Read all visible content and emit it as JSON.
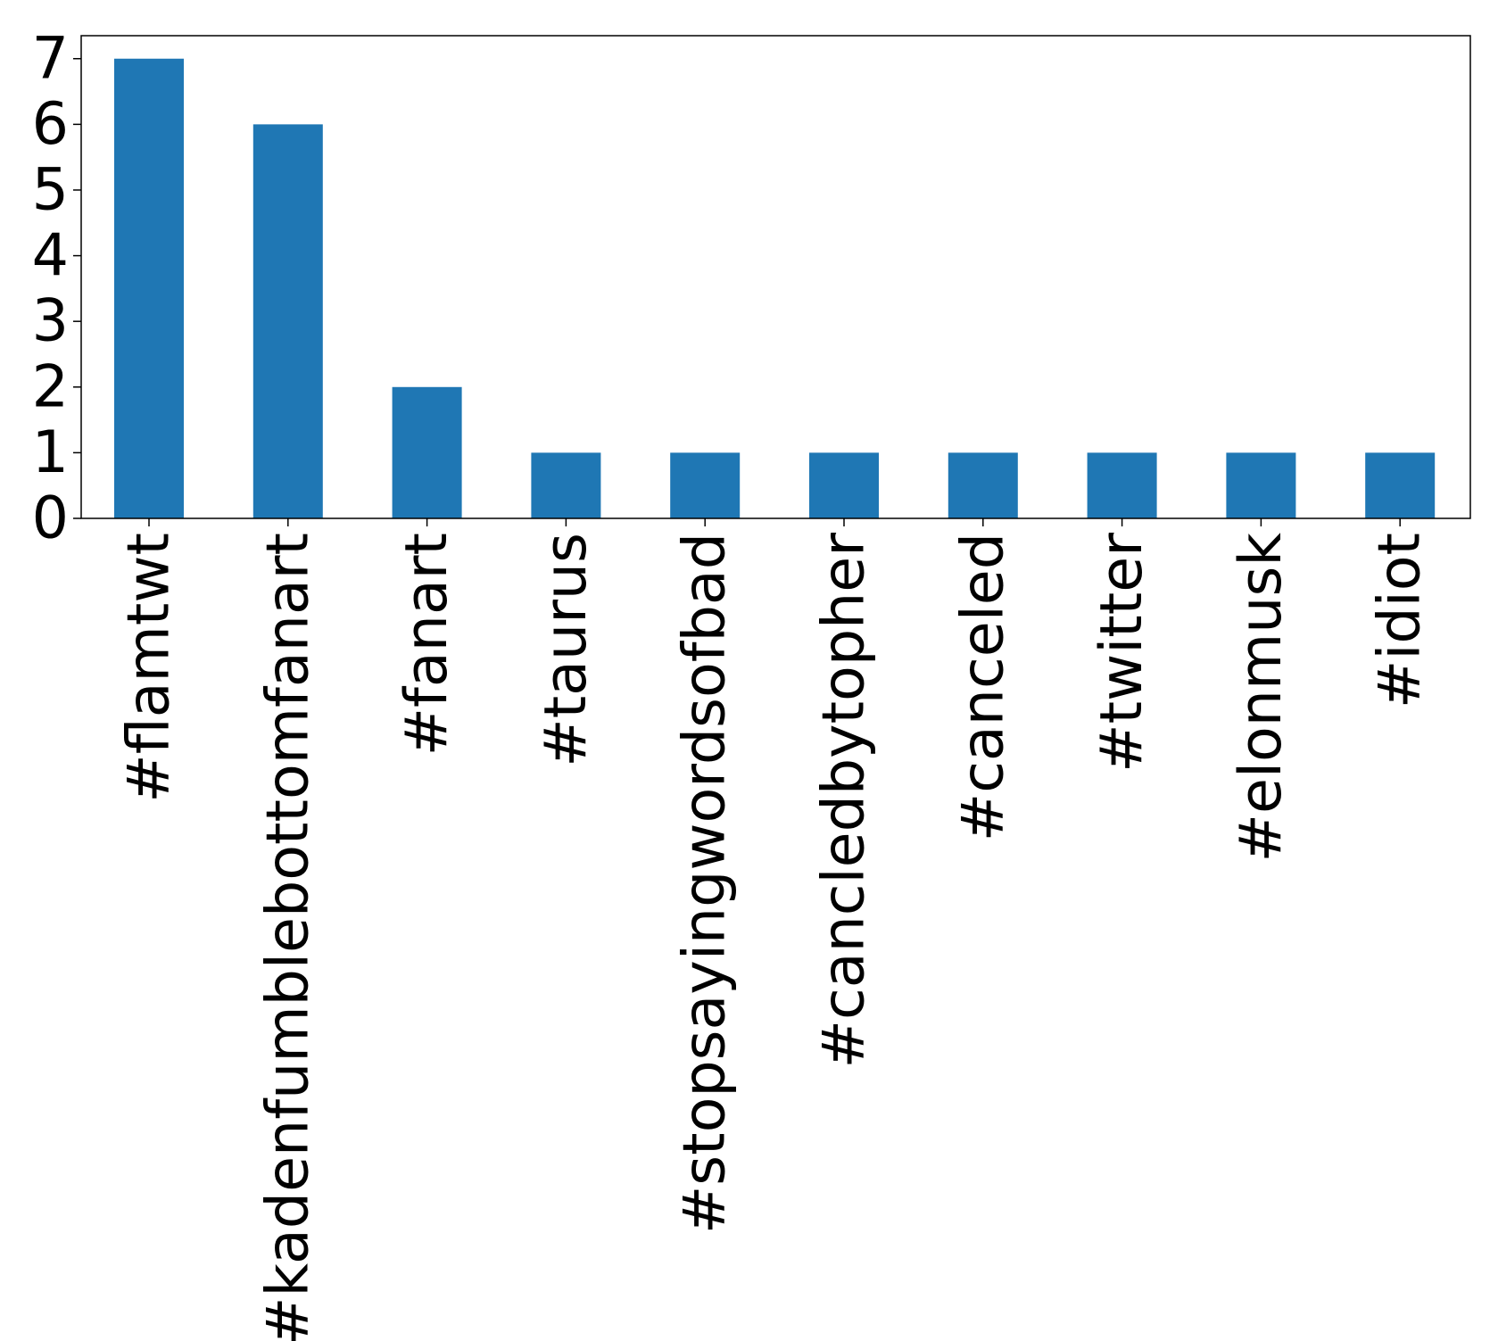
{
  "chart_data": {
    "type": "bar",
    "categories": [
      "#flamtwt",
      "#kadenfumblebottomfanart",
      "#fanart",
      "#taurus",
      "#stopsayingwordsofbad",
      "#cancledbytopher",
      "#canceled",
      "#twitter",
      "#elonmusk",
      "#idiot"
    ],
    "values": [
      7,
      6,
      2,
      1,
      1,
      1,
      1,
      1,
      1,
      1
    ],
    "y_ticks": [
      "0",
      "1",
      "2",
      "3",
      "4",
      "5",
      "6",
      "7"
    ],
    "ylim": [
      0,
      7.35
    ],
    "title": "",
    "xlabel": "",
    "ylabel": "",
    "grid": false,
    "legend": "none",
    "bar_color": "#1f77b4"
  }
}
